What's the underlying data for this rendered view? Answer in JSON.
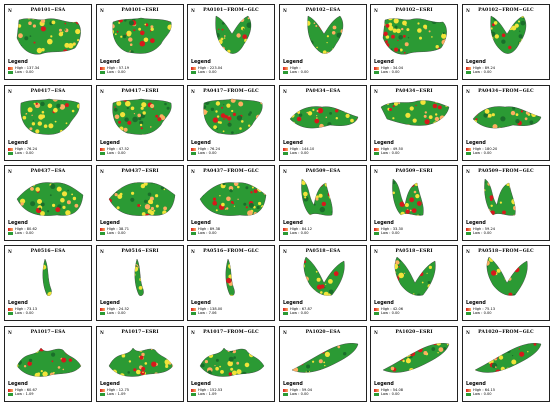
{
  "legend_title": "Legend",
  "high_prefix": "High : ",
  "low_prefix": "Low : ",
  "colors": {
    "high": "#d7191c",
    "mid": "#fdae61",
    "yellow": "#f2e33a",
    "green": "#2b9a34",
    "dark": "#1a6e2a"
  },
  "panels": [
    {
      "title": "PA0101−ESA",
      "high": "137.34",
      "low": "0.00"
    },
    {
      "title": "PA0101−ESRI",
      "high": "57.19",
      "low": "0.00"
    },
    {
      "title": "PA0101−FROM−GLC",
      "high": "223.04",
      "low": "0.00"
    },
    {
      "title": "PA0102−ESA",
      "high": "",
      "low": "0.00"
    },
    {
      "title": "PA0102−ESRI",
      "high": "34.04",
      "low": "0.00"
    },
    {
      "title": "PA0102−FROM−GLC",
      "high": "89.24",
      "low": "0.00"
    },
    {
      "title": "PA0417−ESA",
      "high": "76.24",
      "low": "0.00"
    },
    {
      "title": "PA0417−ESRI",
      "high": "47.52",
      "low": "0.00"
    },
    {
      "title": "PA0417−FROM−GLC",
      "high": "76.24",
      "low": "0.00"
    },
    {
      "title": "PA0434−ESA",
      "high": "144.10",
      "low": "0.00"
    },
    {
      "title": "PA0434−ESRI",
      "high": "49.50",
      "low": "0.00"
    },
    {
      "title": "PA0434−FROM−GLC",
      "high": "180.20",
      "low": "0.00"
    },
    {
      "title": "PA0437−ESA",
      "high": "80.62",
      "low": "0.00"
    },
    {
      "title": "PA0437−ESRI",
      "high": "38.71",
      "low": "0.00"
    },
    {
      "title": "PA0437−FROM−GLC",
      "high": "89.38",
      "low": "0.00"
    },
    {
      "title": "PA0509−ESA",
      "high": "84.12",
      "low": "0.00"
    },
    {
      "title": "PA0509−ESRI",
      "high": "33.30",
      "low": "0.00"
    },
    {
      "title": "PA0509−FROM−GLC",
      "high": "59.24",
      "low": "0.00"
    },
    {
      "title": "PA0516−ESA",
      "high": "73.13",
      "low": "0.00"
    },
    {
      "title": "PA0516−ESRI",
      "high": "24.52",
      "low": "0.00"
    },
    {
      "title": "PA0516−FROM−GLC",
      "high": "138.00",
      "low": "7.06"
    },
    {
      "title": "PA0518−ESA",
      "high": "67.87",
      "low": "0.00"
    },
    {
      "title": "PA0518−ESRI",
      "high": "42.06",
      "low": "0.00"
    },
    {
      "title": "PA0518−FROM−GLC",
      "high": "75.13",
      "low": "0.00"
    },
    {
      "title": "PA1017−ESA",
      "high": "60.67",
      "low": "1.09"
    },
    {
      "title": "PA1017−ESRI",
      "high": "12.75",
      "low": "1.09"
    },
    {
      "title": "PA1017−FROM−GLC",
      "high": "152.53",
      "low": "1.09"
    },
    {
      "title": "PA1020−ESA",
      "high": "59.04",
      "low": "0.00"
    },
    {
      "title": "PA1020−ESRI",
      "high": "54.08",
      "low": "0.00"
    },
    {
      "title": "PA1020−FROM−GLC",
      "high": "64.15",
      "low": "0.00"
    }
  ]
}
